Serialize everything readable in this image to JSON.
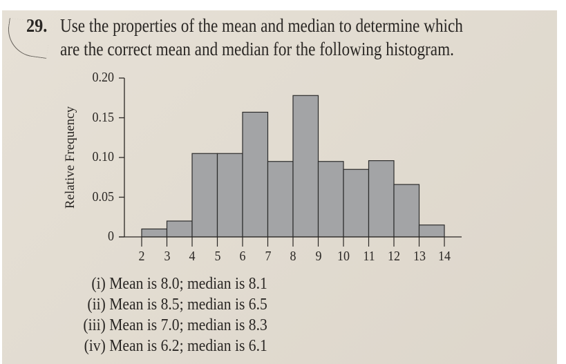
{
  "problem": {
    "number": "29.",
    "text_line1": "Use the properties of the mean and median to determine which",
    "text_line2": "are the correct mean and median for the following histogram."
  },
  "options": [
    {
      "label": "(i)",
      "text": "Mean is 8.0; median is 8.1"
    },
    {
      "label": "(ii)",
      "text": "Mean is 8.5; median is 6.5"
    },
    {
      "label": "(iii)",
      "text": "Mean is 7.0; median is 8.3"
    },
    {
      "label": "(iv)",
      "text": "Mean is 6.2; median is 6.1"
    }
  ],
  "colors": {
    "bar_fill": "#a3a4a6",
    "bar_stroke": "#2b2b2b",
    "paper": "#e4ded3",
    "ink": "#2a2724"
  },
  "chart_data": {
    "type": "bar",
    "title": "",
    "xlabel": "",
    "ylabel": "Relative Frequency",
    "bin_edges": [
      2,
      3,
      4,
      5,
      6,
      7,
      8,
      9,
      10,
      11,
      12,
      13,
      14
    ],
    "categories": [
      "2-3",
      "3-4",
      "4-5",
      "5-6",
      "6-7",
      "7-8",
      "8-9",
      "9-10",
      "10-11",
      "11-12",
      "12-13",
      "13-14"
    ],
    "values": [
      0.01,
      0.02,
      0.105,
      0.105,
      0.157,
      0.095,
      0.178,
      0.095,
      0.085,
      0.096,
      0.066,
      0.015
    ],
    "x_ticks": [
      "2",
      "3",
      "4",
      "5",
      "6",
      "7",
      "8",
      "9",
      "10",
      "11",
      "12",
      "13",
      "14"
    ],
    "y_ticks": [
      "0",
      "0.05",
      "0.10",
      "0.15",
      "0.20"
    ],
    "ylim": [
      0,
      0.2
    ],
    "xlim": [
      2,
      14
    ],
    "grid": false,
    "legend": null
  }
}
